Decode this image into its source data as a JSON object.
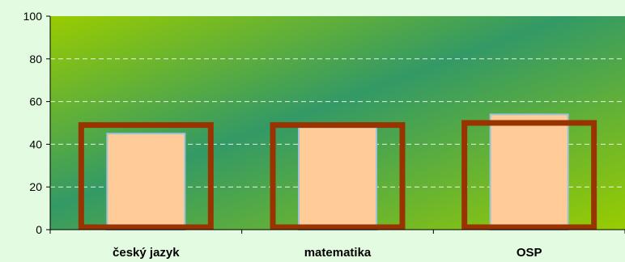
{
  "chart_data": {
    "type": "bar",
    "categories": [
      "český jazyk",
      "matematika",
      "OSP"
    ],
    "series": [
      {
        "values": [
          45,
          48,
          54
        ]
      },
      {
        "values": [
          49,
          49,
          50
        ]
      }
    ],
    "ylim": [
      0,
      100
    ],
    "y_ticks": [
      0,
      20,
      40,
      60,
      80,
      100
    ],
    "grid": true,
    "colors": {
      "bar_fill": "#ffcc99",
      "bar_edge": "#9ec3d8",
      "outline": "#993300",
      "grid": "#ffffff",
      "plot_gradient": [
        "#99cc00",
        "#339966",
        "#99cc00"
      ]
    }
  }
}
